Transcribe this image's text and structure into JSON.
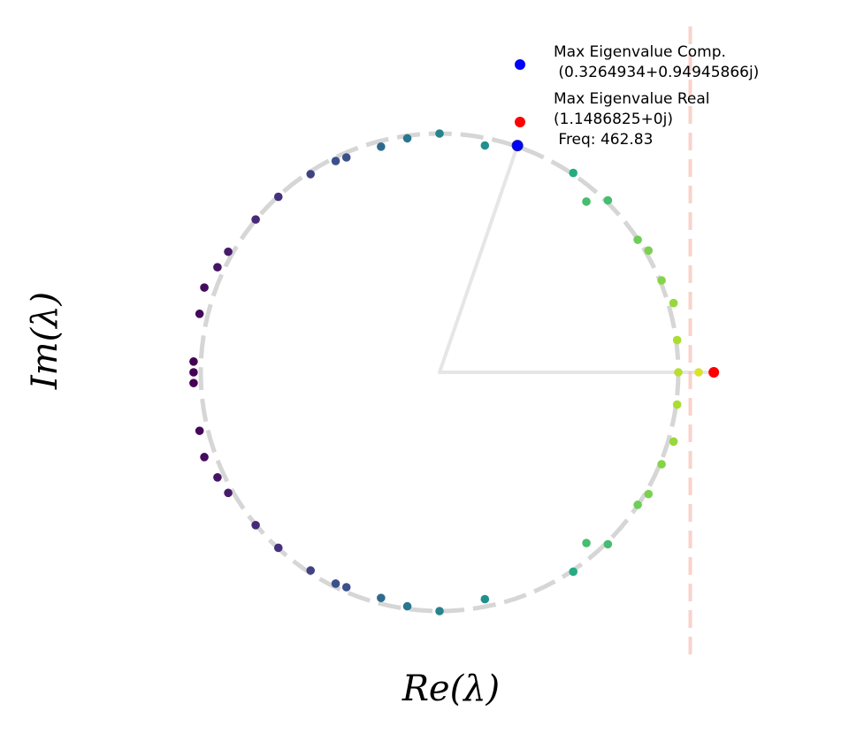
{
  "chart_data": {
    "type": "scatter",
    "title": "",
    "xlabel": "Re(λ)",
    "ylabel": "Im(λ)",
    "xlim": [
      -1.03,
      1.5
    ],
    "ylim": [
      -1.28,
      1.62
    ],
    "grid": false,
    "legend_placement": "top-right",
    "colormap": "viridis",
    "unit_circle": {
      "radius": 1.0,
      "color": "#cccccc",
      "style": "dashed"
    },
    "threshold_line": {
      "x": 1.05,
      "color": "#f7b5a8",
      "style": "dashed"
    },
    "legend": [
      {
        "label_lines": [
          "Max Eigenvalue Comp.",
          " (0.3264934+0.94945866j)"
        ],
        "color": "#0000ff"
      },
      {
        "label_lines": [
          "Max Eigenvalue Real",
          "(1.1486825+0j)",
          " Freq: 462.83"
        ],
        "color": "#ff0000"
      }
    ],
    "max_complex": {
      "re": 0.3264934,
      "im": 0.94945866,
      "color": "#0000ff"
    },
    "max_real": {
      "re": 1.1486825,
      "im": 0.0,
      "color": "#ff0000"
    },
    "eigenvalues": [
      {
        "re": 0.0,
        "im": 1.0,
        "c": 0.45
      },
      {
        "re": 0.19,
        "im": 0.95,
        "c": 0.5
      },
      {
        "re": -0.135,
        "im": 0.98,
        "c": 0.4
      },
      {
        "re": -0.245,
        "im": 0.945,
        "c": 0.35
      },
      {
        "re": -0.39,
        "im": 0.9,
        "c": 0.25
      },
      {
        "re": -0.435,
        "im": 0.885,
        "c": 0.25
      },
      {
        "re": -0.54,
        "im": 0.83,
        "c": 0.2
      },
      {
        "re": -0.675,
        "im": 0.735,
        "c": 0.15
      },
      {
        "re": -0.77,
        "im": 0.64,
        "c": 0.12
      },
      {
        "re": -0.885,
        "im": 0.505,
        "c": 0.08
      },
      {
        "re": -0.93,
        "im": 0.44,
        "c": 0.06
      },
      {
        "re": -0.985,
        "im": 0.355,
        "c": 0.03
      },
      {
        "re": -1.005,
        "im": 0.245,
        "c": 0.02
      },
      {
        "re": -1.03,
        "im": 0.045,
        "c": 0.0
      },
      {
        "re": -1.03,
        "im": 0.0,
        "c": 0.0
      },
      {
        "re": -1.03,
        "im": -0.045,
        "c": 0.0
      },
      {
        "re": 0.56,
        "im": 0.835,
        "c": 0.62
      },
      {
        "re": 0.615,
        "im": 0.715,
        "c": 0.7
      },
      {
        "re": 0.705,
        "im": 0.72,
        "c": 0.7
      },
      {
        "re": 0.83,
        "im": 0.555,
        "c": 0.78
      },
      {
        "re": 0.875,
        "im": 0.51,
        "c": 0.8
      },
      {
        "re": 0.93,
        "im": 0.385,
        "c": 0.82
      },
      {
        "re": 0.98,
        "im": 0.29,
        "c": 0.85
      },
      {
        "re": 0.995,
        "im": 0.135,
        "c": 0.88
      },
      {
        "re": 1.0,
        "im": 0.0,
        "c": 0.9
      },
      {
        "re": 1.085,
        "im": 0.0,
        "c": 0.95
      },
      {
        "re": 0.0,
        "im": -1.0,
        "c": 0.45
      },
      {
        "re": 0.19,
        "im": -0.95,
        "c": 0.5
      },
      {
        "re": -0.135,
        "im": -0.98,
        "c": 0.4
      },
      {
        "re": -0.245,
        "im": -0.945,
        "c": 0.35
      },
      {
        "re": -0.39,
        "im": -0.9,
        "c": 0.25
      },
      {
        "re": -0.435,
        "im": -0.885,
        "c": 0.25
      },
      {
        "re": -0.54,
        "im": -0.83,
        "c": 0.2
      },
      {
        "re": -0.675,
        "im": -0.735,
        "c": 0.15
      },
      {
        "re": -0.77,
        "im": -0.64,
        "c": 0.12
      },
      {
        "re": -0.885,
        "im": -0.505,
        "c": 0.08
      },
      {
        "re": -0.93,
        "im": -0.44,
        "c": 0.06
      },
      {
        "re": -0.985,
        "im": -0.355,
        "c": 0.03
      },
      {
        "re": -1.005,
        "im": -0.245,
        "c": 0.02
      },
      {
        "re": 0.56,
        "im": -0.835,
        "c": 0.62
      },
      {
        "re": 0.615,
        "im": -0.715,
        "c": 0.7
      },
      {
        "re": 0.705,
        "im": -0.72,
        "c": 0.7
      },
      {
        "re": 0.83,
        "im": -0.555,
        "c": 0.78
      },
      {
        "re": 0.875,
        "im": -0.51,
        "c": 0.8
      },
      {
        "re": 0.93,
        "im": -0.385,
        "c": 0.82
      },
      {
        "re": 0.98,
        "im": -0.29,
        "c": 0.85
      },
      {
        "re": 0.995,
        "im": -0.135,
        "c": 0.88
      }
    ]
  }
}
